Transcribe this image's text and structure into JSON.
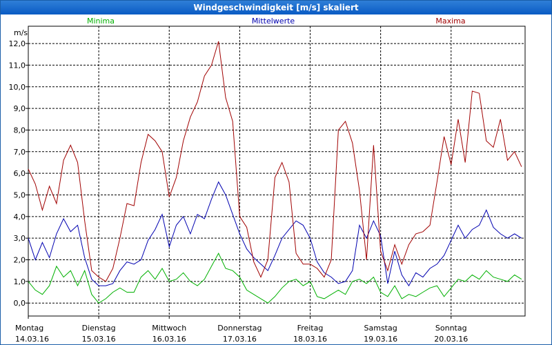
{
  "window": {
    "title": "Windgeschwindigkeit [m/s] skaliert"
  },
  "chart_data": {
    "type": "line",
    "title": "Windgeschwindigkeit [m/s] skaliert",
    "ylabel": "m/s",
    "ylim": [
      -0.6,
      12.8
    ],
    "yticks": [
      "0,0",
      "1,0",
      "2,0",
      "3,0",
      "4,0",
      "5,0",
      "6,0",
      "7,0",
      "8,0",
      "9,0",
      "10,0",
      "11,0",
      "12,0"
    ],
    "xlim": [
      0,
      7.05
    ],
    "xticks": [
      {
        "day": "Montag",
        "date": "14.03.16"
      },
      {
        "day": "Dienstag",
        "date": "15.03.16"
      },
      {
        "day": "Mittwoch",
        "date": "16.03.16"
      },
      {
        "day": "Donnerstag",
        "date": "17.03.16"
      },
      {
        "day": "Freitag",
        "date": "18.03.16"
      },
      {
        "day": "Samstag",
        "date": "19.03.16"
      },
      {
        "day": "Sonntag",
        "date": "20.03.16"
      }
    ],
    "grid": true,
    "legend_position": "top",
    "series": [
      {
        "name": "Minima",
        "color": "#00b000",
        "x": [
          0,
          0.1,
          0.2,
          0.3,
          0.4,
          0.5,
          0.6,
          0.7,
          0.8,
          0.9,
          1.0,
          1.1,
          1.2,
          1.3,
          1.4,
          1.5,
          1.6,
          1.7,
          1.8,
          1.9,
          2.0,
          2.1,
          2.2,
          2.3,
          2.4,
          2.5,
          2.6,
          2.7,
          2.8,
          2.9,
          3.0,
          3.1,
          3.2,
          3.3,
          3.4,
          3.5,
          3.6,
          3.7,
          3.8,
          3.9,
          4.0,
          4.1,
          4.2,
          4.3,
          4.4,
          4.5,
          4.6,
          4.7,
          4.8,
          4.9,
          5.0,
          5.1,
          5.2,
          5.3,
          5.4,
          5.5,
          5.6,
          5.7,
          5.8,
          5.9,
          6.0,
          6.1,
          6.2,
          6.3,
          6.4,
          6.5,
          6.6,
          6.7,
          6.8,
          6.9,
          7.0
        ],
        "y": [
          1.0,
          0.6,
          0.4,
          0.8,
          1.7,
          1.2,
          1.5,
          0.8,
          1.5,
          0.4,
          0.0,
          0.2,
          0.5,
          0.7,
          0.5,
          0.5,
          1.2,
          1.5,
          1.1,
          1.6,
          1.0,
          1.1,
          1.4,
          1.0,
          0.8,
          1.1,
          1.7,
          2.3,
          1.6,
          1.5,
          1.2,
          0.6,
          0.4,
          0.2,
          0.0,
          0.3,
          0.7,
          1.0,
          1.1,
          0.8,
          1.0,
          0.3,
          0.2,
          0.4,
          0.6,
          0.4,
          1.0,
          1.1,
          0.9,
          1.2,
          0.5,
          0.3,
          0.8,
          0.2,
          0.4,
          0.3,
          0.5,
          0.7,
          0.8,
          0.3,
          0.7,
          1.1,
          1.0,
          1.3,
          1.1,
          1.5,
          1.2,
          1.1,
          1.0,
          1.3,
          1.1
        ]
      },
      {
        "name": "Mittelwerte",
        "color": "#0000b0",
        "x": [
          0,
          0.1,
          0.2,
          0.3,
          0.4,
          0.5,
          0.6,
          0.7,
          0.8,
          0.9,
          1.0,
          1.1,
          1.2,
          1.3,
          1.4,
          1.5,
          1.6,
          1.7,
          1.8,
          1.9,
          2.0,
          2.1,
          2.2,
          2.3,
          2.4,
          2.5,
          2.6,
          2.7,
          2.8,
          2.9,
          3.0,
          3.1,
          3.2,
          3.3,
          3.4,
          3.5,
          3.6,
          3.7,
          3.8,
          3.9,
          4.0,
          4.1,
          4.2,
          4.3,
          4.4,
          4.5,
          4.6,
          4.7,
          4.8,
          4.9,
          5.0,
          5.1,
          5.2,
          5.3,
          5.4,
          5.5,
          5.6,
          5.7,
          5.8,
          5.9,
          6.0,
          6.1,
          6.2,
          6.3,
          6.4,
          6.5,
          6.6,
          6.7,
          6.8,
          6.9,
          7.0
        ],
        "y": [
          3.0,
          2.0,
          2.8,
          2.1,
          3.2,
          3.9,
          3.3,
          3.6,
          2.1,
          1.1,
          0.8,
          0.8,
          0.9,
          1.5,
          1.9,
          1.8,
          2.0,
          2.9,
          3.4,
          4.1,
          2.6,
          3.6,
          4.0,
          3.2,
          4.1,
          3.9,
          4.8,
          5.6,
          5.0,
          4.1,
          3.2,
          2.5,
          2.1,
          1.8,
          1.5,
          2.2,
          3.0,
          3.4,
          3.8,
          3.6,
          3.0,
          1.9,
          1.4,
          1.2,
          0.9,
          1.0,
          1.5,
          3.6,
          3.0,
          3.8,
          3.1,
          0.9,
          2.4,
          1.3,
          0.8,
          1.4,
          1.2,
          1.6,
          1.8,
          2.2,
          2.9,
          3.6,
          3.0,
          3.4,
          3.6,
          4.3,
          3.5,
          3.2,
          3.0,
          3.2,
          3.0
        ]
      },
      {
        "name": "Maxima",
        "color": "#a00000",
        "x": [
          0,
          0.1,
          0.2,
          0.3,
          0.4,
          0.5,
          0.6,
          0.7,
          0.8,
          0.9,
          1.0,
          1.1,
          1.2,
          1.3,
          1.4,
          1.5,
          1.6,
          1.7,
          1.8,
          1.9,
          2.0,
          2.1,
          2.2,
          2.3,
          2.4,
          2.5,
          2.6,
          2.7,
          2.8,
          2.9,
          3.0,
          3.1,
          3.2,
          3.3,
          3.4,
          3.5,
          3.6,
          3.7,
          3.8,
          3.9,
          4.0,
          4.1,
          4.2,
          4.3,
          4.4,
          4.5,
          4.6,
          4.7,
          4.8,
          4.9,
          5.0,
          5.1,
          5.2,
          5.3,
          5.4,
          5.5,
          5.6,
          5.7,
          5.8,
          5.9,
          6.0,
          6.1,
          6.2,
          6.3,
          6.4,
          6.5,
          6.6,
          6.7,
          6.8,
          6.9,
          7.0
        ],
        "y": [
          6.2,
          5.5,
          4.3,
          5.4,
          4.6,
          6.6,
          7.3,
          6.5,
          3.8,
          1.5,
          1.2,
          1.0,
          1.6,
          3.0,
          4.6,
          4.5,
          6.5,
          7.8,
          7.5,
          7.0,
          4.9,
          5.8,
          7.5,
          8.6,
          9.3,
          10.5,
          11.0,
          12.1,
          9.5,
          8.4,
          4.0,
          3.5,
          1.9,
          1.2,
          2.0,
          5.8,
          6.5,
          5.6,
          2.3,
          1.8,
          1.8,
          1.6,
          1.2,
          2.0,
          8.0,
          8.4,
          7.4,
          5.2,
          2.0,
          7.3,
          2.4,
          1.5,
          2.7,
          1.8,
          2.7,
          3.2,
          3.3,
          3.6,
          5.6,
          7.7,
          6.4,
          8.5,
          6.5,
          9.8,
          9.7,
          7.5,
          7.2,
          8.5,
          6.6,
          7.0,
          6.3
        ]
      }
    ]
  }
}
